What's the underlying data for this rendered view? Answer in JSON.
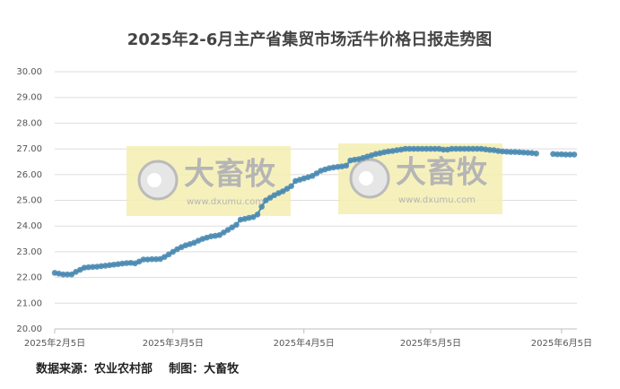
{
  "chart_data": {
    "type": "line",
    "title": "2025年2-6月主产省集贸市场活牛价格日报走势图",
    "x": [
      "2025-02-05",
      "2025-02-06",
      "2025-02-07",
      "2025-02-08",
      "2025-02-09",
      "2025-02-10",
      "2025-02-11",
      "2025-02-12",
      "2025-02-13",
      "2025-02-14",
      "2025-02-15",
      "2025-02-16",
      "2025-02-17",
      "2025-02-18",
      "2025-02-19",
      "2025-02-20",
      "2025-02-21",
      "2025-02-22",
      "2025-02-23",
      "2025-02-24",
      "2025-02-25",
      "2025-02-26",
      "2025-02-27",
      "2025-02-28",
      "2025-03-01",
      "2025-03-02",
      "2025-03-03",
      "2025-03-04",
      "2025-03-05",
      "2025-03-06",
      "2025-03-07",
      "2025-03-08",
      "2025-03-09",
      "2025-03-10",
      "2025-03-11",
      "2025-03-12",
      "2025-03-13",
      "2025-03-14",
      "2025-03-15",
      "2025-03-16",
      "2025-03-17",
      "2025-03-18",
      "2025-03-19",
      "2025-03-20",
      "2025-03-21",
      "2025-03-22",
      "2025-03-23",
      "2025-03-24",
      "2025-03-25",
      "2025-03-26",
      "2025-03-27",
      "2025-03-28",
      "2025-03-29",
      "2025-03-30",
      "2025-03-31",
      "2025-04-01",
      "2025-04-02",
      "2025-04-03",
      "2025-04-04",
      "2025-04-05",
      "2025-04-06",
      "2025-04-07",
      "2025-04-08",
      "2025-04-09",
      "2025-04-10",
      "2025-04-11",
      "2025-04-12",
      "2025-04-13",
      "2025-04-14",
      "2025-04-15",
      "2025-04-16",
      "2025-04-17",
      "2025-04-18",
      "2025-04-19",
      "2025-04-20",
      "2025-04-21",
      "2025-04-22",
      "2025-04-23",
      "2025-04-24",
      "2025-04-25",
      "2025-04-26",
      "2025-04-27",
      "2025-04-28",
      "2025-04-29",
      "2025-04-30",
      "2025-05-01",
      "2025-05-02",
      "2025-05-03",
      "2025-05-04",
      "2025-05-05",
      "2025-05-06",
      "2025-05-07",
      "2025-05-08",
      "2025-05-09",
      "2025-05-10",
      "2025-05-11",
      "2025-05-12",
      "2025-05-13",
      "2025-05-14",
      "2025-05-15",
      "2025-05-16",
      "2025-05-17",
      "2025-05-18",
      "2025-05-19",
      "2025-05-20",
      "2025-05-21",
      "2025-05-22",
      "2025-05-23",
      "2025-05-24",
      "2025-05-25",
      "2025-05-26",
      "2025-05-27",
      "2025-05-28",
      "2025-05-29",
      "2025-05-30",
      "2025-05-31",
      "2025-06-01",
      "2025-06-02",
      "2025-06-03",
      "2025-06-04",
      "2025-06-05",
      "2025-06-06",
      "2025-06-07",
      "2025-06-08"
    ],
    "values": [
      22.18,
      22.15,
      22.12,
      22.12,
      22.12,
      22.22,
      22.3,
      22.38,
      22.4,
      22.41,
      22.42,
      22.44,
      22.46,
      22.48,
      22.5,
      22.52,
      22.54,
      22.56,
      22.57,
      22.55,
      22.62,
      22.7,
      22.7,
      22.71,
      22.71,
      22.72,
      22.8,
      22.9,
      23.0,
      23.1,
      23.18,
      23.25,
      23.3,
      23.35,
      23.43,
      23.5,
      23.55,
      23.6,
      23.62,
      23.65,
      23.75,
      23.85,
      23.95,
      24.05,
      24.25,
      24.28,
      24.32,
      24.35,
      24.45,
      24.75,
      25.0,
      25.1,
      25.2,
      25.28,
      25.35,
      25.45,
      25.55,
      25.75,
      25.8,
      25.85,
      25.9,
      25.95,
      26.05,
      26.15,
      26.2,
      26.25,
      26.28,
      26.3,
      26.32,
      26.35,
      26.55,
      26.58,
      26.6,
      26.65,
      26.7,
      26.75,
      26.8,
      26.83,
      26.87,
      26.9,
      26.92,
      26.95,
      26.97,
      27.0,
      27.0,
      27.0,
      27.0,
      27.0,
      27.0,
      27.0,
      27.0,
      27.0,
      26.97,
      26.97,
      27.0,
      27.0,
      27.0,
      27.0,
      27.0,
      27.0,
      27.0,
      27.0,
      26.98,
      26.96,
      26.95,
      26.92,
      26.9,
      26.89,
      26.88,
      26.88,
      26.87,
      26.86,
      26.85,
      26.84,
      26.82,
      null,
      null,
      null,
      26.8,
      26.79,
      26.79,
      26.78,
      26.78,
      26.78
    ],
    "color": "#4a8ab3",
    "xlim": [
      "2025-02-05",
      "2025-06-08"
    ],
    "xticks": [
      {
        "value": "2025-02-05",
        "label": "2025年2月5日"
      },
      {
        "value": "2025-03-05",
        "label": "2025年3月5日"
      },
      {
        "value": "2025-04-05",
        "label": "2025年4月5日"
      },
      {
        "value": "2025-05-05",
        "label": "2025年5月5日"
      },
      {
        "value": "2025-06-05",
        "label": "2025年6月5日"
      }
    ],
    "ylim": [
      20,
      30
    ],
    "yticks": [
      {
        "value": 20,
        "label": "20.00"
      },
      {
        "value": 21,
        "label": "21.00"
      },
      {
        "value": 22,
        "label": "22.00"
      },
      {
        "value": 23,
        "label": "23.00"
      },
      {
        "value": 24,
        "label": "24.00"
      },
      {
        "value": 25,
        "label": "25.00"
      },
      {
        "value": 26,
        "label": "26.00"
      },
      {
        "value": 27,
        "label": "27.00"
      },
      {
        "value": 28,
        "label": "28.00"
      },
      {
        "value": 29,
        "label": "29.00"
      },
      {
        "value": 30,
        "label": "30.00"
      }
    ],
    "grid": true,
    "watermarks": [
      {
        "brand": "大畜牧",
        "url": "www.dxumu.com"
      },
      {
        "brand": "大畜牧",
        "url": "www.dxumu.com"
      }
    ],
    "footer": "数据来源：农业农村部    制图：大畜牧"
  }
}
